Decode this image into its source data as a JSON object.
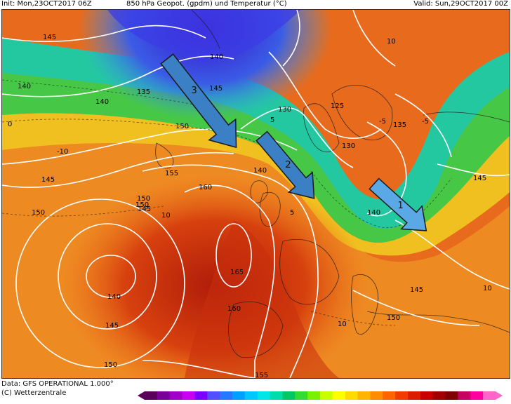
{
  "header": {
    "init": "Init: Mon,23OCT2017 06Z",
    "title": "850 hPa Geopot. (gpdm) und Temperatur (°C)",
    "valid": "Valid: Sun,29OCT2017 00Z"
  },
  "footer": {
    "data": "Data: GFS OPERATIONAL 1.000°",
    "copyright": "(C) Wetterzentrale"
  },
  "map": {
    "geopotential_labels": [
      "145",
      "140",
      "135",
      "140",
      "150",
      "145",
      "150",
      "145",
      "155",
      "150",
      "160",
      "140",
      "145",
      "140",
      "130",
      "125",
      "130",
      "135",
      "145",
      "140",
      "165",
      "160",
      "145",
      "150",
      "145",
      "150",
      "155"
    ],
    "temperature_labels": [
      "10",
      "0",
      "-5",
      "-10",
      "5",
      "10",
      "10",
      "5",
      "-5",
      "10"
    ],
    "arrows": [
      {
        "label": "3",
        "color": "#3b7fc4"
      },
      {
        "label": "2",
        "color": "#3b7fc4"
      },
      {
        "label": "1",
        "color": "#5aa9e6"
      }
    ]
  },
  "colorbar": {
    "colors": [
      "#5a005a",
      "#7a0099",
      "#a000c8",
      "#c800f0",
      "#7d00ff",
      "#5050ff",
      "#2878ff",
      "#00a0ff",
      "#00c8ff",
      "#00e6e6",
      "#00dcaa",
      "#00c864",
      "#32dc32",
      "#78f000",
      "#c8ff00",
      "#ffff00",
      "#ffdc00",
      "#ffb400",
      "#ff8c00",
      "#ff6400",
      "#f03c00",
      "#dc1e00",
      "#c80000",
      "#a00000",
      "#800000",
      "#c80064",
      "#ff00a0",
      "#ff64c8"
    ]
  }
}
